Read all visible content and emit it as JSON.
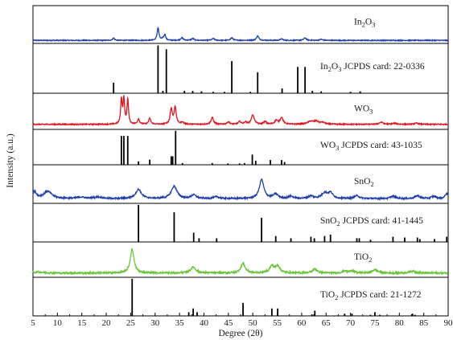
{
  "chart_data": {
    "type": "line",
    "xlabel": "Degree (2θ)",
    "ylabel": "Intensity (a.u.)",
    "xlim": [
      5,
      90
    ],
    "xticks": [
      5,
      10,
      15,
      20,
      25,
      30,
      35,
      40,
      45,
      50,
      55,
      60,
      65,
      70,
      75,
      80,
      85,
      90
    ],
    "grid": false,
    "panels": [
      {
        "name": "In2O3",
        "label_text": "In",
        "label_sub1": "2",
        "label_mid": "O",
        "label_sub2": "3",
        "color": "#1f3fb0",
        "baseline_frac": 0.92,
        "noise": 0.012,
        "peaks": [
          {
            "x": 21.5,
            "h": 0.06,
            "w": 0.25
          },
          {
            "x": 30.6,
            "h": 0.35,
            "w": 0.22
          },
          {
            "x": 31.6,
            "h": 0.05,
            "w": 0.2
          },
          {
            "x": 32.0,
            "h": 0.16,
            "w": 0.2
          },
          {
            "x": 35.5,
            "h": 0.07,
            "w": 0.3
          },
          {
            "x": 37.7,
            "h": 0.05,
            "w": 0.3
          },
          {
            "x": 41.9,
            "h": 0.05,
            "w": 0.3
          },
          {
            "x": 45.7,
            "h": 0.07,
            "w": 0.3
          },
          {
            "x": 51.0,
            "h": 0.12,
            "w": 0.3
          },
          {
            "x": 55.9,
            "h": 0.04,
            "w": 0.3
          },
          {
            "x": 60.7,
            "h": 0.07,
            "w": 0.3
          },
          {
            "x": 64.0,
            "h": 0.03,
            "w": 0.3
          }
        ]
      },
      {
        "name": "In2O3 JCPDS",
        "label_text": "In",
        "label_sub1": "2",
        "label_mid": "O",
        "label_sub2": "3",
        "label_suffix": " JCPDS card: 22-0336",
        "color": "#000000",
        "sticks": [
          {
            "x": 21.5,
            "h": 0.22
          },
          {
            "x": 30.6,
            "h": 1.0
          },
          {
            "x": 31.6,
            "h": 0.05
          },
          {
            "x": 32.3,
            "h": 0.92
          },
          {
            "x": 36.0,
            "h": 0.05
          },
          {
            "x": 37.7,
            "h": 0.05
          },
          {
            "x": 39.5,
            "h": 0.04
          },
          {
            "x": 41.9,
            "h": 0.03
          },
          {
            "x": 44.2,
            "h": 0.03
          },
          {
            "x": 45.7,
            "h": 0.67
          },
          {
            "x": 49.5,
            "h": 0.03
          },
          {
            "x": 51.0,
            "h": 0.44
          },
          {
            "x": 56.0,
            "h": 0.1
          },
          {
            "x": 59.2,
            "h": 0.55
          },
          {
            "x": 60.7,
            "h": 0.55
          },
          {
            "x": 62.2,
            "h": 0.05
          },
          {
            "x": 64.0,
            "h": 0.04
          },
          {
            "x": 70.0,
            "h": 0.03
          },
          {
            "x": 72.0,
            "h": 0.04
          }
        ]
      },
      {
        "name": "WO3",
        "label_text": "WO",
        "label_sub1": "3",
        "color": "#e0141e",
        "baseline_frac": 0.86,
        "noise": 0.015,
        "peaks": [
          {
            "x": 23.1,
            "h": 0.72,
            "w": 0.18
          },
          {
            "x": 23.6,
            "h": 0.72,
            "w": 0.18
          },
          {
            "x": 24.4,
            "h": 0.72,
            "w": 0.18
          },
          {
            "x": 26.6,
            "h": 0.15,
            "w": 0.25
          },
          {
            "x": 28.9,
            "h": 0.17,
            "w": 0.25
          },
          {
            "x": 33.3,
            "h": 0.45,
            "w": 0.25
          },
          {
            "x": 34.1,
            "h": 0.5,
            "w": 0.25
          },
          {
            "x": 35.6,
            "h": 0.06,
            "w": 0.3
          },
          {
            "x": 41.7,
            "h": 0.2,
            "w": 0.3
          },
          {
            "x": 45.0,
            "h": 0.07,
            "w": 0.3
          },
          {
            "x": 47.3,
            "h": 0.08,
            "w": 0.3
          },
          {
            "x": 48.5,
            "h": 0.06,
            "w": 0.3
          },
          {
            "x": 50.0,
            "h": 0.28,
            "w": 0.35
          },
          {
            "x": 52.5,
            "h": 0.08,
            "w": 0.3
          },
          {
            "x": 54.8,
            "h": 0.11,
            "w": 0.35
          },
          {
            "x": 55.9,
            "h": 0.2,
            "w": 0.35
          },
          {
            "x": 61.8,
            "h": 0.08,
            "w": 0.7
          },
          {
            "x": 63.0,
            "h": 0.08,
            "w": 0.6
          },
          {
            "x": 64.3,
            "h": 0.05,
            "w": 0.5
          },
          {
            "x": 76.3,
            "h": 0.06,
            "w": 0.5
          },
          {
            "x": 79.0,
            "h": 0.03,
            "w": 0.5
          },
          {
            "x": 83.5,
            "h": 0.03,
            "w": 0.5
          }
        ]
      },
      {
        "name": "WO3 JCPDS",
        "label_text": "WO",
        "label_sub1": "3",
        "label_suffix": " JCPDS card: 43-1035",
        "color": "#000000",
        "sticks": [
          {
            "x": 23.1,
            "h": 0.85
          },
          {
            "x": 23.6,
            "h": 0.85
          },
          {
            "x": 24.4,
            "h": 0.85
          },
          {
            "x": 26.6,
            "h": 0.1
          },
          {
            "x": 28.9,
            "h": 0.15
          },
          {
            "x": 33.3,
            "h": 0.25
          },
          {
            "x": 33.6,
            "h": 0.25
          },
          {
            "x": 34.2,
            "h": 1.0
          },
          {
            "x": 35.6,
            "h": 0.05
          },
          {
            "x": 41.7,
            "h": 0.05
          },
          {
            "x": 44.9,
            "h": 0.04
          },
          {
            "x": 47.3,
            "h": 0.04
          },
          {
            "x": 48.3,
            "h": 0.05
          },
          {
            "x": 49.9,
            "h": 0.3
          },
          {
            "x": 50.6,
            "h": 0.12
          },
          {
            "x": 53.6,
            "h": 0.14
          },
          {
            "x": 55.9,
            "h": 0.14
          },
          {
            "x": 56.5,
            "h": 0.08
          }
        ]
      },
      {
        "name": "SnO2",
        "label_text": "SnO",
        "label_sub1": "2",
        "color": "#1f3fa8",
        "baseline_frac": 0.88,
        "noise": 0.02,
        "peaks": [
          {
            "x": 5.3,
            "h": 0.18,
            "w": 0.5
          },
          {
            "x": 8.0,
            "h": 0.2,
            "w": 1.0
          },
          {
            "x": 14.8,
            "h": 0.04,
            "w": 1.0
          },
          {
            "x": 18.3,
            "h": 0.04,
            "w": 1.0
          },
          {
            "x": 26.6,
            "h": 0.25,
            "w": 0.7
          },
          {
            "x": 33.9,
            "h": 0.34,
            "w": 0.7
          },
          {
            "x": 37.9,
            "h": 0.1,
            "w": 0.6
          },
          {
            "x": 42.6,
            "h": 0.05,
            "w": 0.6
          },
          {
            "x": 51.8,
            "h": 0.52,
            "w": 0.55
          },
          {
            "x": 54.7,
            "h": 0.12,
            "w": 0.6
          },
          {
            "x": 57.8,
            "h": 0.06,
            "w": 0.6
          },
          {
            "x": 61.9,
            "h": 0.07,
            "w": 0.6
          },
          {
            "x": 64.7,
            "h": 0.15,
            "w": 0.7
          },
          {
            "x": 65.9,
            "h": 0.15,
            "w": 0.6
          },
          {
            "x": 71.3,
            "h": 0.08,
            "w": 0.6
          },
          {
            "x": 78.7,
            "h": 0.07,
            "w": 0.6
          },
          {
            "x": 83.7,
            "h": 0.08,
            "w": 0.6
          },
          {
            "x": 87.0,
            "h": 0.06,
            "w": 0.6
          },
          {
            "x": 89.7,
            "h": 0.14,
            "w": 0.4
          }
        ]
      },
      {
        "name": "SnO2 JCPDS",
        "label_text": "SnO",
        "label_sub1": "2",
        "label_suffix": " JCPDS card: 41-1445",
        "color": "#000000",
        "sticks": [
          {
            "x": 26.6,
            "h": 1.0
          },
          {
            "x": 33.9,
            "h": 0.8
          },
          {
            "x": 37.9,
            "h": 0.25
          },
          {
            "x": 39.0,
            "h": 0.1
          },
          {
            "x": 42.6,
            "h": 0.1
          },
          {
            "x": 51.8,
            "h": 0.65
          },
          {
            "x": 54.7,
            "h": 0.16
          },
          {
            "x": 57.8,
            "h": 0.1
          },
          {
            "x": 61.9,
            "h": 0.14
          },
          {
            "x": 62.6,
            "h": 0.1
          },
          {
            "x": 64.7,
            "h": 0.16
          },
          {
            "x": 65.9,
            "h": 0.2
          },
          {
            "x": 71.3,
            "h": 0.1
          },
          {
            "x": 71.8,
            "h": 0.1
          },
          {
            "x": 74.1,
            "h": 0.06
          },
          {
            "x": 78.7,
            "h": 0.14
          },
          {
            "x": 81.1,
            "h": 0.12
          },
          {
            "x": 83.7,
            "h": 0.12
          },
          {
            "x": 84.2,
            "h": 0.08
          },
          {
            "x": 87.2,
            "h": 0.08
          },
          {
            "x": 89.7,
            "h": 0.14
          }
        ]
      },
      {
        "name": "TiO2",
        "label_text": "TiO",
        "label_sub1": "2",
        "color": "#6ac43a",
        "baseline_frac": 0.88,
        "noise": 0.025,
        "peaks": [
          {
            "x": 6.0,
            "h": 0.03,
            "w": 1.5
          },
          {
            "x": 25.3,
            "h": 0.72,
            "w": 0.45
          },
          {
            "x": 37.8,
            "h": 0.18,
            "w": 0.6
          },
          {
            "x": 48.0,
            "h": 0.28,
            "w": 0.55
          },
          {
            "x": 53.9,
            "h": 0.2,
            "w": 0.55
          },
          {
            "x": 55.1,
            "h": 0.2,
            "w": 0.55
          },
          {
            "x": 62.7,
            "h": 0.12,
            "w": 0.55
          },
          {
            "x": 68.8,
            "h": 0.06,
            "w": 0.5
          },
          {
            "x": 70.3,
            "h": 0.07,
            "w": 0.5
          },
          {
            "x": 75.0,
            "h": 0.1,
            "w": 0.6
          },
          {
            "x": 82.7,
            "h": 0.06,
            "w": 0.6
          }
        ]
      },
      {
        "name": "TiO2 JCPDS",
        "label_text": "TiO",
        "label_sub1": "2",
        "label_suffix": " JCPDS card: 21-1272",
        "color": "#000000",
        "sticks": [
          {
            "x": 25.3,
            "h": 1.0
          },
          {
            "x": 36.9,
            "h": 0.1
          },
          {
            "x": 37.8,
            "h": 0.2
          },
          {
            "x": 38.6,
            "h": 0.1
          },
          {
            "x": 48.0,
            "h": 0.35
          },
          {
            "x": 53.9,
            "h": 0.2
          },
          {
            "x": 55.1,
            "h": 0.2
          },
          {
            "x": 62.1,
            "h": 0.04
          },
          {
            "x": 62.7,
            "h": 0.14
          },
          {
            "x": 68.8,
            "h": 0.06
          },
          {
            "x": 70.3,
            "h": 0.06
          },
          {
            "x": 74.1,
            "h": 0.03
          },
          {
            "x": 75.0,
            "h": 0.1
          },
          {
            "x": 76.0,
            "h": 0.03
          },
          {
            "x": 82.7,
            "h": 0.06
          },
          {
            "x": 83.2,
            "h": 0.03
          }
        ]
      }
    ]
  }
}
